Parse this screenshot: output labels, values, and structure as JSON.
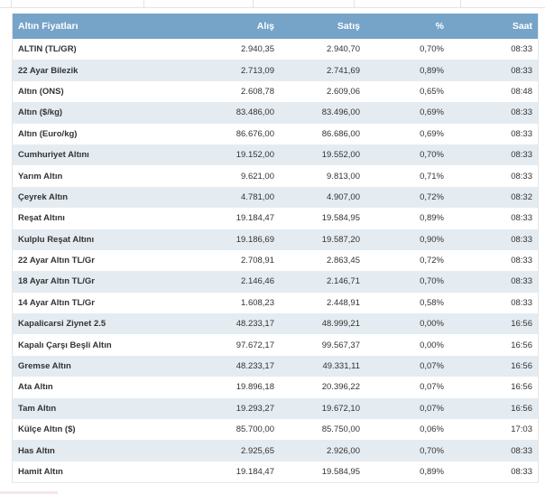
{
  "table": {
    "headers": {
      "name": "Altın Fiyatları",
      "buy": "Alış",
      "sell": "Satış",
      "change": "%",
      "time": "Saat"
    },
    "rows": [
      {
        "name": "ALTIN (TL/GR)",
        "buy": "2.940,35",
        "sell": "2.940,70",
        "change": "0,70%",
        "time": "08:33"
      },
      {
        "name": "22 Ayar Bilezik",
        "buy": "2.713,09",
        "sell": "2.741,69",
        "change": "0,89%",
        "time": "08:33"
      },
      {
        "name": "Altın (ONS)",
        "buy": "2.608,78",
        "sell": "2.609,06",
        "change": "0,65%",
        "time": "08:48"
      },
      {
        "name": "Altın ($/kg)",
        "buy": "83.486,00",
        "sell": "83.496,00",
        "change": "0,69%",
        "time": "08:33"
      },
      {
        "name": "Altın (Euro/kg)",
        "buy": "86.676,00",
        "sell": "86.686,00",
        "change": "0,69%",
        "time": "08:33"
      },
      {
        "name": "Cumhuriyet Altını",
        "buy": "19.152,00",
        "sell": "19.552,00",
        "change": "0,70%",
        "time": "08:33"
      },
      {
        "name": "Yarım Altın",
        "buy": "9.621,00",
        "sell": "9.813,00",
        "change": "0,71%",
        "time": "08:33"
      },
      {
        "name": "Çeyrek Altın",
        "buy": "4.781,00",
        "sell": "4.907,00",
        "change": "0,72%",
        "time": "08:32"
      },
      {
        "name": "Reşat Altını",
        "buy": "19.184,47",
        "sell": "19.584,95",
        "change": "0,89%",
        "time": "08:33"
      },
      {
        "name": "Kulplu Reşat Altını",
        "buy": "19.186,69",
        "sell": "19.587,20",
        "change": "0,90%",
        "time": "08:33"
      },
      {
        "name": "22 Ayar Altın TL/Gr",
        "buy": "2.708,91",
        "sell": "2.863,45",
        "change": "0,72%",
        "time": "08:33"
      },
      {
        "name": "18 Ayar Altın TL/Gr",
        "buy": "2.146,46",
        "sell": "2.146,71",
        "change": "0,70%",
        "time": "08:33"
      },
      {
        "name": "14 Ayar Altın TL/Gr",
        "buy": "1.608,23",
        "sell": "2.448,91",
        "change": "0,58%",
        "time": "08:33"
      },
      {
        "name": "Kapalicarsi Ziynet 2.5",
        "buy": "48.233,17",
        "sell": "48.999,21",
        "change": "0,00%",
        "time": "16:56"
      },
      {
        "name": "Kapalı Çarşı Beşli Altın",
        "buy": "97.672,17",
        "sell": "99.567,37",
        "change": "0,00%",
        "time": "16:56"
      },
      {
        "name": "Gremse Altın",
        "buy": "48.233,17",
        "sell": "49.331,11",
        "change": "0,07%",
        "time": "16:56"
      },
      {
        "name": "Ata Altın",
        "buy": "19.896,18",
        "sell": "20.396,22",
        "change": "0,07%",
        "time": "16:56"
      },
      {
        "name": "Tam Altın",
        "buy": "19.293,27",
        "sell": "19.672,10",
        "change": "0,07%",
        "time": "16:56"
      },
      {
        "name": "Külçe Altın ($)",
        "buy": "85.700,00",
        "sell": "85.750,00",
        "change": "0,06%",
        "time": "17:03"
      },
      {
        "name": "Has Altın",
        "buy": "2.925,65",
        "sell": "2.926,00",
        "change": "0,70%",
        "time": "08:33"
      },
      {
        "name": "Hamit Altın",
        "buy": "19.184,47",
        "sell": "19.584,95",
        "change": "0,89%",
        "time": "08:33"
      }
    ]
  },
  "colors": {
    "header_bg": "#76a3c8",
    "row_alt_bg": "#e4ecf2",
    "text": "#333333"
  }
}
